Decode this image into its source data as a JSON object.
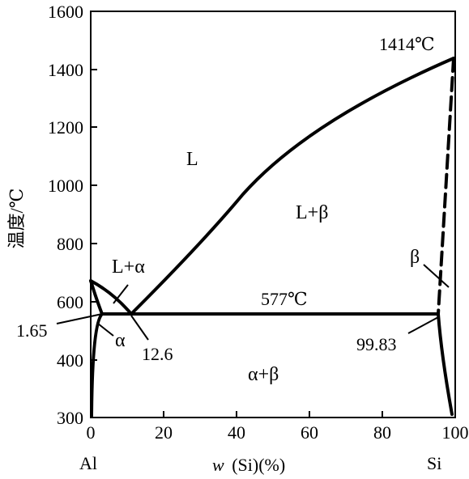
{
  "chart_data": {
    "type": "phase-diagram",
    "title": "",
    "ylabel": "温度/℃",
    "xlabel_italic": "w",
    "xlabel_rest": "(Si)(%)",
    "xlim": [
      0,
      100
    ],
    "ylim": [
      300,
      1600
    ],
    "xticks": [
      "0",
      "20",
      "40",
      "60",
      "80",
      "100"
    ],
    "yticks": [
      "300",
      "400",
      "600",
      "800",
      "1000",
      "1200",
      "1400",
      "1600"
    ],
    "x_end_labels": {
      "left": "Al",
      "right": "Si"
    },
    "regions": {
      "liquid": "L",
      "liquid_beta": "L+β",
      "liquid_alpha": "L+α",
      "alpha": "α",
      "beta": "β",
      "alpha_beta": "α+β"
    },
    "annotations": {
      "si_melting": "1414℃",
      "eutectic_temp": "577℃",
      "eutectic_comp": "12.6",
      "alpha_solubility": "1.65",
      "beta_solubility": "99.83"
    },
    "key_points": {
      "al_melting": [
        0,
        660
      ],
      "si_melting": [
        100,
        1414
      ],
      "eutectic": [
        12.6,
        577
      ],
      "alpha_max": [
        1.65,
        577
      ],
      "beta_max": [
        99.83,
        577
      ]
    }
  }
}
